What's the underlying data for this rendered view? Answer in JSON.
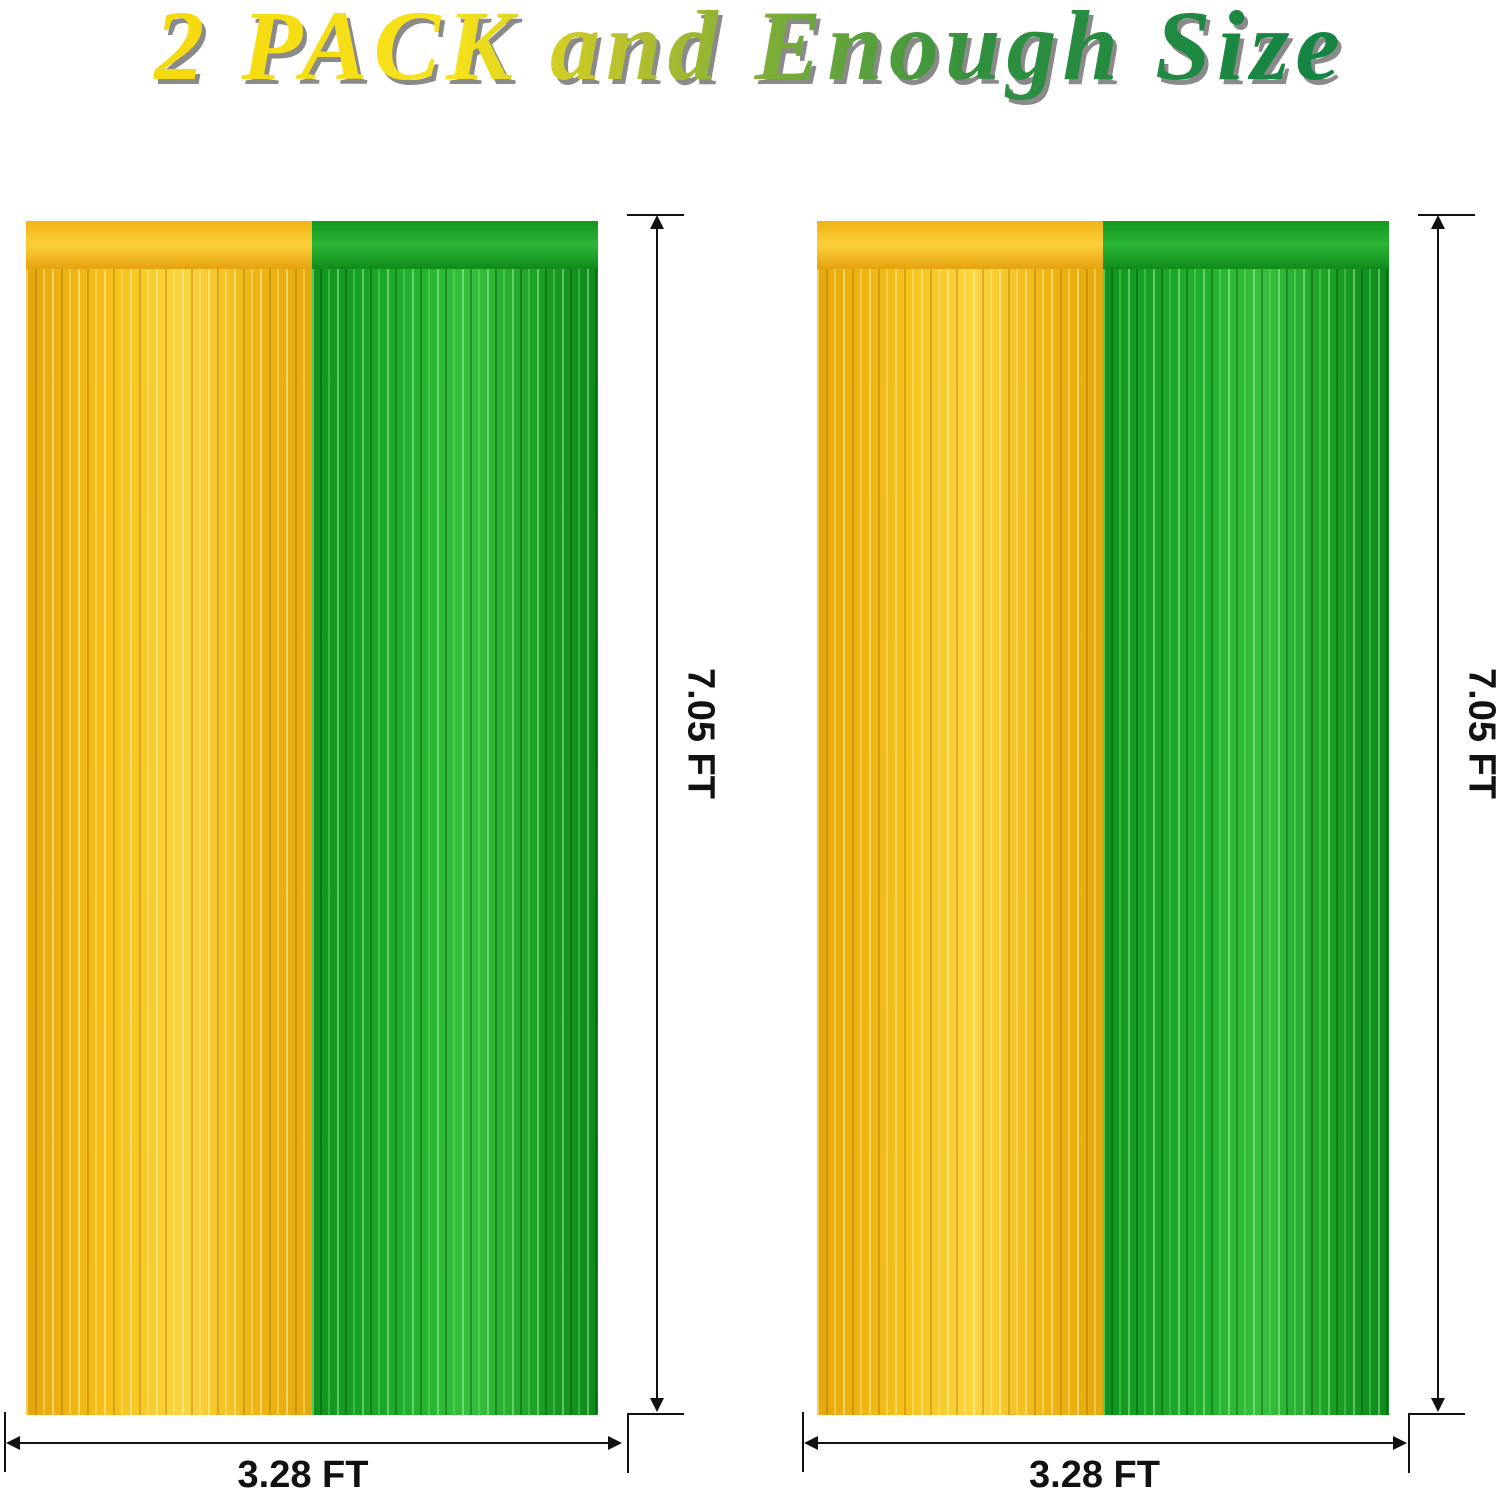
{
  "title": "2 PACK and Enough Size",
  "colors": {
    "gold": "#f5c11a",
    "green": "#23b02f"
  },
  "curtains": [
    {
      "height_label": "7.05 FT",
      "width_label": "3.28 FT"
    },
    {
      "height_label": "7.05 FT",
      "width_label": "3.28 FT"
    }
  ]
}
